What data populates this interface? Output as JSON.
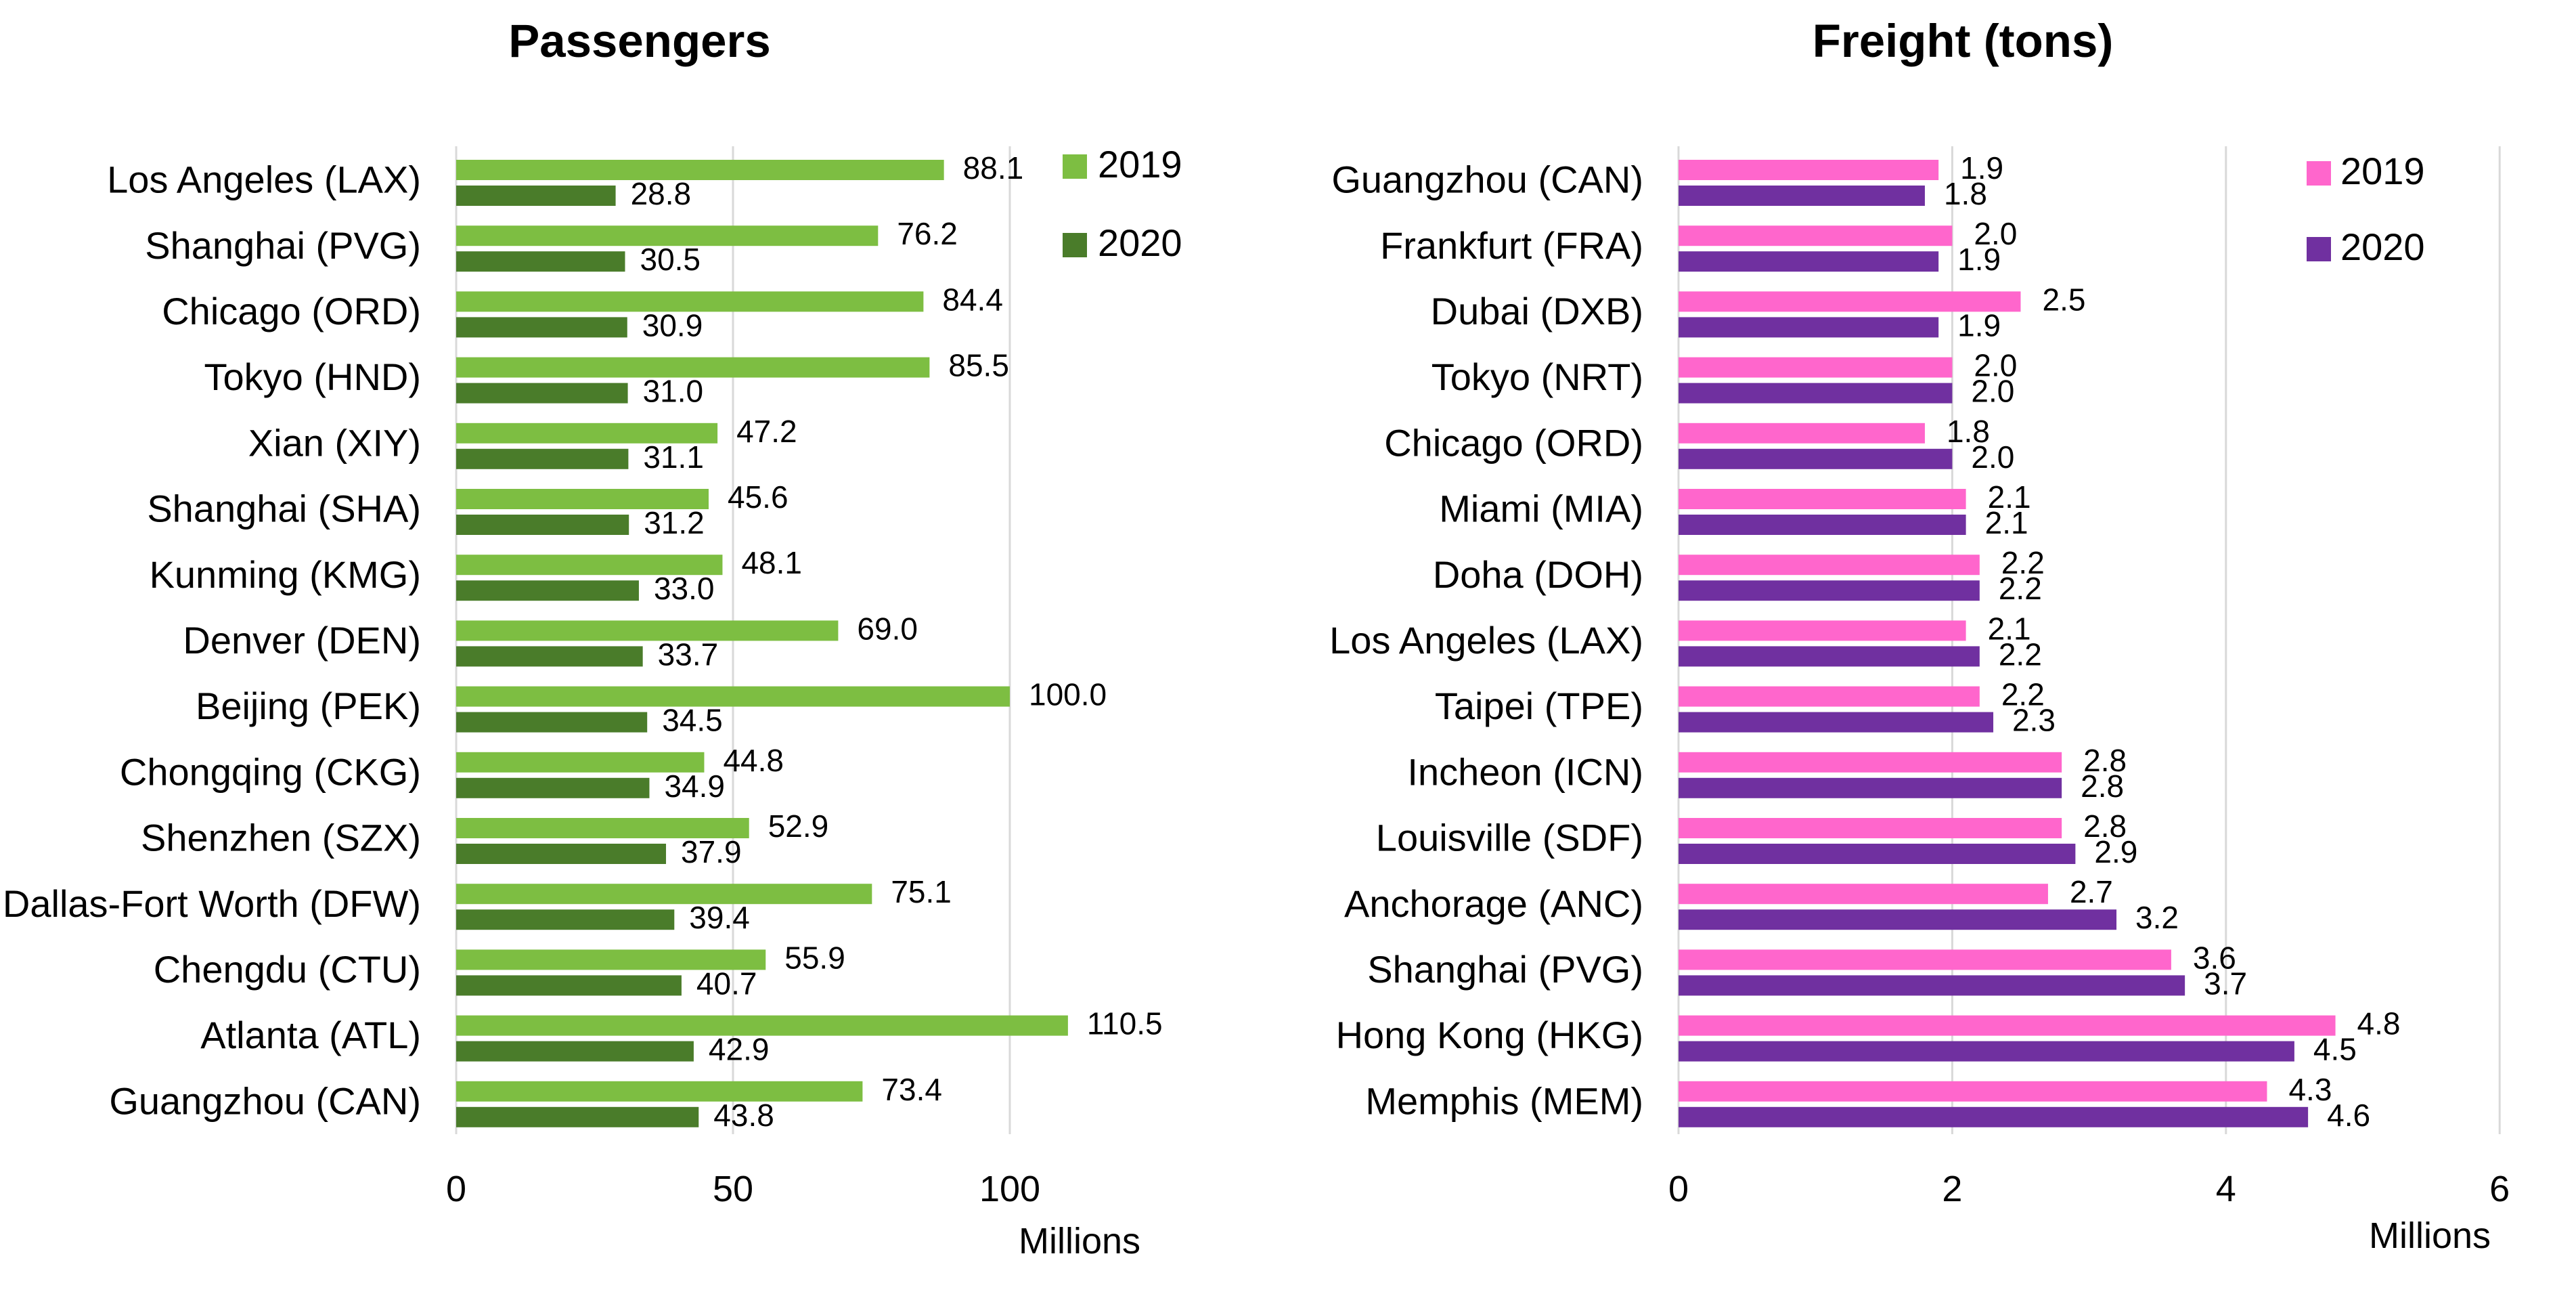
{
  "chart_data": [
    {
      "type": "bar",
      "orientation": "horizontal",
      "title": "Passengers",
      "unit_label": "Millions",
      "xlim": [
        0,
        130
      ],
      "xticks": [
        0,
        50,
        100
      ],
      "grid": true,
      "legend_position": "top-right",
      "categories": [
        "Los Angeles (LAX)",
        "Shanghai (PVG)",
        "Chicago (ORD)",
        "Tokyo (HND)",
        "Xian (XIY)",
        "Shanghai (SHA)",
        "Kunming (KMG)",
        "Denver (DEN)",
        "Beijing (PEK)",
        "Chongqing (CKG)",
        "Shenzhen (SZX)",
        "Dallas-Fort Worth (DFW)",
        "Chengdu (CTU)",
        "Atlanta (ATL)",
        "Guangzhou (CAN)"
      ],
      "series": [
        {
          "name": "2019",
          "color": "#7DBE42",
          "values": [
            88.1,
            76.2,
            84.4,
            85.5,
            47.2,
            45.6,
            48.1,
            69.0,
            100.0,
            44.8,
            52.9,
            75.1,
            55.9,
            110.5,
            73.4
          ]
        },
        {
          "name": "2020",
          "color": "#4A7C2A",
          "values": [
            28.8,
            30.5,
            30.9,
            31.0,
            31.1,
            31.2,
            33.0,
            33.7,
            34.5,
            34.9,
            37.9,
            39.4,
            40.7,
            42.9,
            43.8
          ]
        }
      ]
    },
    {
      "type": "bar",
      "orientation": "horizontal",
      "title": "Freight (tons)",
      "unit_label": "Millions",
      "xlim": [
        0,
        6
      ],
      "xticks": [
        0,
        2,
        4,
        6
      ],
      "grid": true,
      "legend_position": "top-right",
      "categories": [
        "Guangzhou (CAN)",
        "Frankfurt (FRA)",
        "Dubai (DXB)",
        "Tokyo (NRT)",
        "Chicago (ORD)",
        "Miami (MIA)",
        "Doha (DOH)",
        "Los Angeles (LAX)",
        "Taipei (TPE)",
        "Incheon (ICN)",
        "Louisville (SDF)",
        "Anchorage (ANC)",
        "Shanghai (PVG)",
        "Hong Kong (HKG)",
        "Memphis (MEM)"
      ],
      "series": [
        {
          "name": "2019",
          "color": "#FF66CC",
          "values": [
            1.9,
            2.0,
            2.5,
            2.0,
            1.8,
            2.1,
            2.2,
            2.1,
            2.2,
            2.8,
            2.8,
            2.7,
            3.6,
            4.8,
            4.3
          ]
        },
        {
          "name": "2020",
          "color": "#7030A0",
          "values": [
            1.8,
            1.9,
            1.9,
            2.0,
            2.0,
            2.1,
            2.2,
            2.2,
            2.3,
            2.8,
            2.9,
            3.2,
            3.7,
            4.5,
            4.6
          ]
        }
      ]
    }
  ]
}
